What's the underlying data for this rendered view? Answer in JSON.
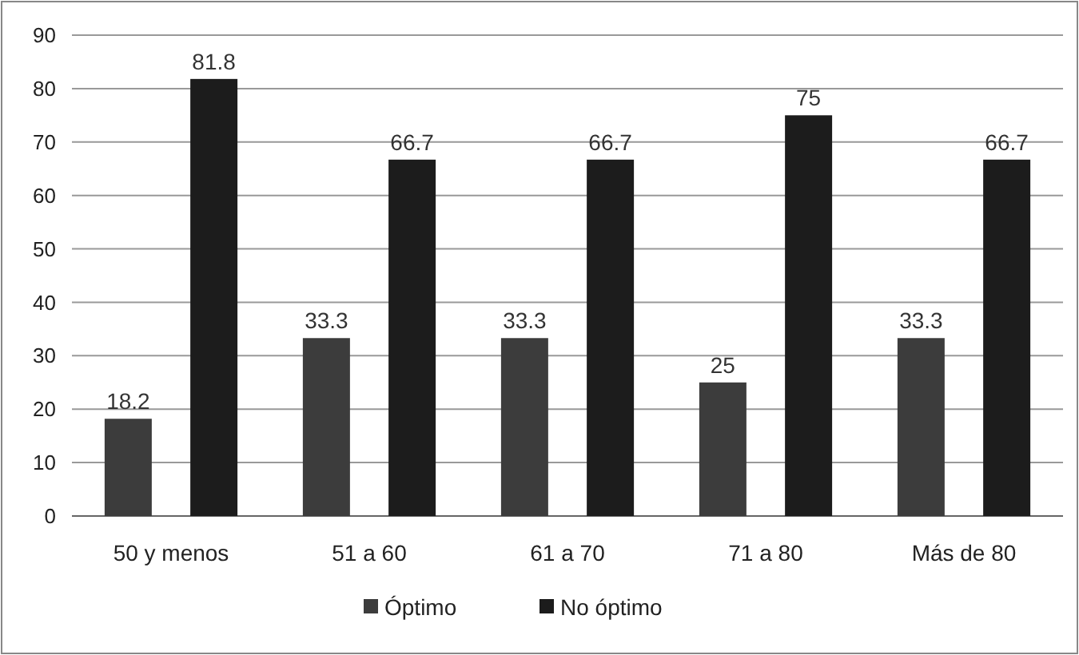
{
  "chart_data": {
    "type": "bar",
    "categories": [
      "50 y menos",
      "51 a 60",
      "61 a 70",
      "71 a 80",
      "Más de 80"
    ],
    "series": [
      {
        "name": "Óptimo",
        "color": "#3c3c3c",
        "values": [
          18.2,
          33.3,
          33.3,
          25,
          33.3
        ]
      },
      {
        "name": "No óptimo",
        "color": "#1c1c1c",
        "values": [
          81.8,
          66.7,
          66.7,
          75,
          66.7
        ]
      }
    ],
    "ylim": [
      0,
      90
    ],
    "yticks": [
      0,
      10,
      20,
      30,
      40,
      50,
      60,
      70,
      80,
      90
    ],
    "grid": "y",
    "data_labels": true,
    "legend": "bottom"
  }
}
